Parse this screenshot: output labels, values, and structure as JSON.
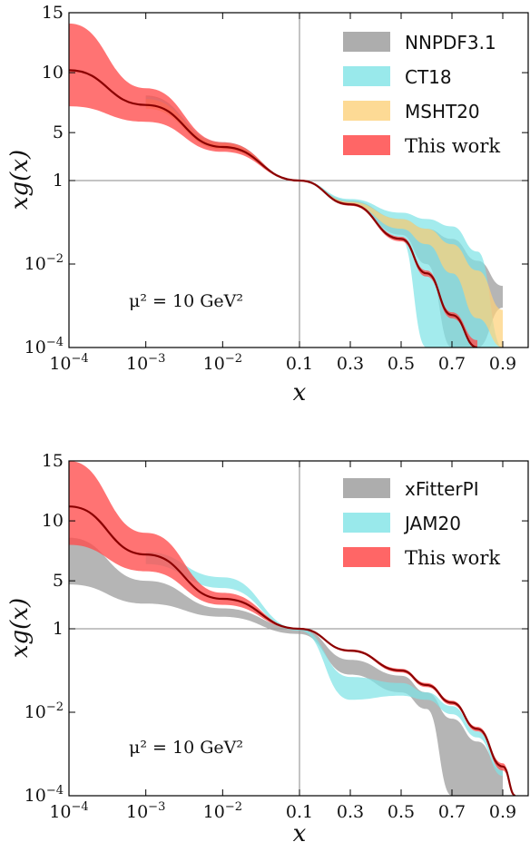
{
  "chart_data": [
    {
      "type": "area",
      "title": "",
      "xlabel": "x",
      "ylabel": "xg(x)",
      "annotation": "μ² = 10 GeV²",
      "x_ticks": [
        "10⁻⁴",
        "10⁻³",
        "10⁻²",
        "0.1",
        "0.3",
        "0.5",
        "0.7",
        "0.9"
      ],
      "y_ticks": [
        "15",
        "10",
        "5",
        "1",
        "10⁻²",
        "10⁻⁴"
      ],
      "x_scale": "log below 0.1, linear above 0.1",
      "y_scale": "linear above 1, log below 1",
      "xlim": [
        0.0001,
        1.0
      ],
      "ylim": [
        0.0001,
        15
      ],
      "legend_position": "top-right",
      "x": [
        0.0001,
        0.001,
        0.01,
        0.1,
        0.3,
        0.5,
        0.6,
        0.7,
        0.8,
        0.9
      ],
      "series": [
        {
          "name": "NNPDF3.1",
          "color": "#999999",
          "lower": [
            null,
            7.2,
            3.6,
            0.96,
            0.25,
            0.05,
            0.01,
            0.0001,
            0.0001,
            0.0009
          ],
          "upper": [
            null,
            8.1,
            4.0,
            1.04,
            0.33,
            0.12,
            0.07,
            0.04,
            0.012,
            0.003
          ]
        },
        {
          "name": "CT18",
          "color": "#7fe3e6",
          "lower": [
            null,
            7.2,
            3.7,
            0.96,
            0.26,
            0.04,
            0.0001,
            0.0001,
            0.0001,
            0.0001
          ],
          "upper": [
            null,
            8.0,
            4.2,
            1.04,
            0.36,
            0.17,
            0.12,
            0.08,
            0.02,
            0.0001
          ]
        },
        {
          "name": "MSHT20",
          "color": "#fdd17a",
          "lower": [
            null,
            7.0,
            3.6,
            0.97,
            0.26,
            0.07,
            0.03,
            0.006,
            0.0005,
            0.0001
          ],
          "upper": [
            null,
            7.8,
            4.1,
            1.03,
            0.31,
            0.12,
            0.07,
            0.03,
            0.007,
            0.0008
          ]
        },
        {
          "name": "This work",
          "color": "#ff4b4b",
          "central": [
            10.2,
            7.3,
            3.8,
            1.0,
            0.27,
            0.04,
            0.006,
            0.0006,
            0.0001,
            null
          ],
          "lower": [
            7.2,
            5.9,
            3.4,
            0.98,
            0.25,
            0.035,
            0.005,
            0.0005,
            0.0001,
            null
          ],
          "upper": [
            14.1,
            8.7,
            4.2,
            1.02,
            0.29,
            0.045,
            0.007,
            0.0007,
            0.00015,
            null
          ]
        }
      ]
    },
    {
      "type": "area",
      "title": "",
      "xlabel": "x",
      "ylabel": "xg(x)",
      "annotation": "μ² = 10 GeV²",
      "x_ticks": [
        "10⁻⁴",
        "10⁻³",
        "10⁻²",
        "0.1",
        "0.3",
        "0.5",
        "0.7",
        "0.9"
      ],
      "y_ticks": [
        "15",
        "10",
        "5",
        "1",
        "10⁻²",
        "10⁻⁴"
      ],
      "x_scale": "log below 0.1, linear above 0.1",
      "y_scale": "linear above 1, log below 1",
      "xlim": [
        0.0001,
        1.0
      ],
      "ylim": [
        0.0001,
        15
      ],
      "legend_position": "top-right",
      "x": [
        0.0001,
        0.001,
        0.01,
        0.1,
        0.3,
        0.5,
        0.6,
        0.7,
        0.8,
        0.9,
        0.95
      ],
      "series": [
        {
          "name": "xFitterPI",
          "color": "#999999",
          "lower": [
            4.7,
            3.1,
            2.0,
            0.75,
            0.08,
            0.03,
            0.012,
            0.0001,
            0.0001,
            0.0001,
            null
          ],
          "upper": [
            8.6,
            5.0,
            2.7,
            1.05,
            0.18,
            0.075,
            0.03,
            0.007,
            0.002,
            0.0004,
            null
          ]
        },
        {
          "name": "JAM20",
          "color": "#7fe3e6",
          "lower": [
            null,
            6.4,
            4.4,
            0.9,
            0.02,
            0.025,
            0.02,
            0.009,
            0.0025,
            0.0003,
            null
          ],
          "upper": [
            null,
            7.4,
            5.3,
            1.0,
            0.07,
            0.05,
            0.03,
            0.014,
            0.0035,
            0.0005,
            null
          ]
        },
        {
          "name": "This work",
          "color": "#ff4b4b",
          "central": [
            11.2,
            7.2,
            3.5,
            1.0,
            0.3,
            0.1,
            0.045,
            0.017,
            0.004,
            0.0005,
            0.0001
          ],
          "lower": [
            8.0,
            5.8,
            3.0,
            0.97,
            0.28,
            0.09,
            0.04,
            0.015,
            0.0035,
            0.0004,
            0.0001
          ],
          "upper": [
            15.0,
            9.0,
            4.0,
            1.03,
            0.32,
            0.11,
            0.05,
            0.019,
            0.0045,
            0.0006,
            0.0001
          ]
        }
      ]
    }
  ]
}
